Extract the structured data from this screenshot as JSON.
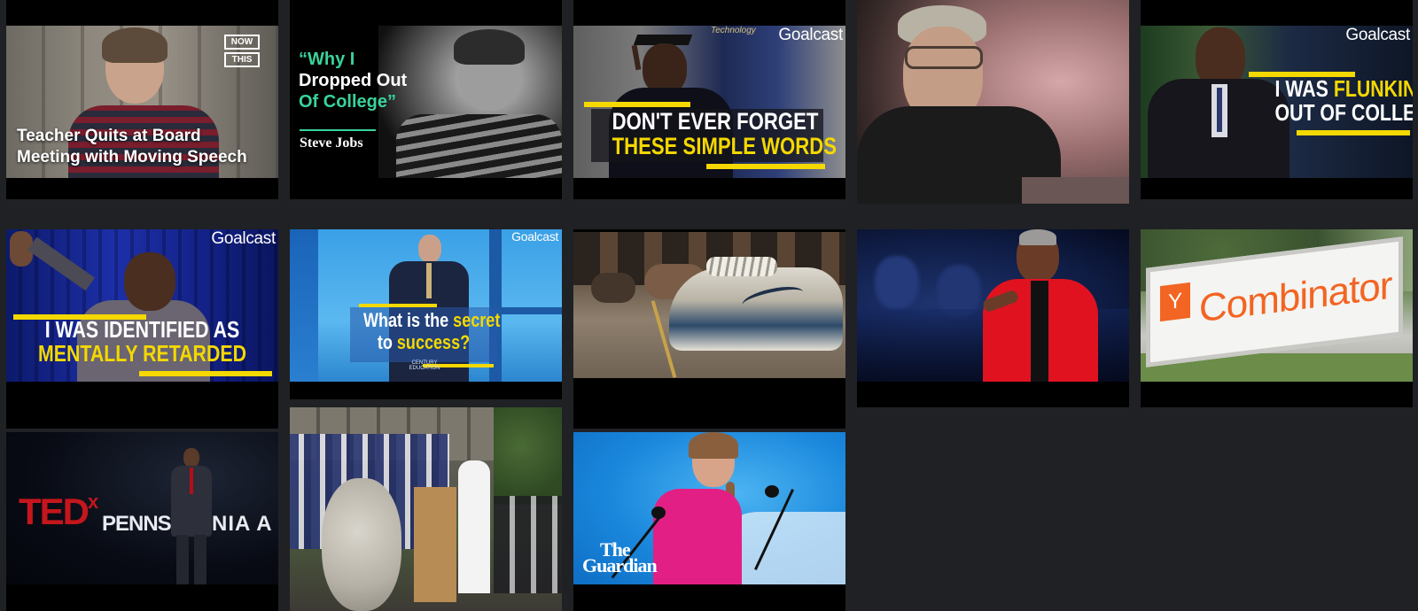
{
  "colors": {
    "background": "#1f2124",
    "card": "#000000",
    "accent_yellow": "#f4d800",
    "accent_green": "#39d39b"
  },
  "videos": [
    {
      "title_line1": "Teacher Quits at Board",
      "title_line2": "Meeting with Moving Speech",
      "brand_line1": "NOW",
      "brand_line2": "THIS"
    },
    {
      "quote_line1": "“Why I",
      "quote_line2": "Dropped Out",
      "quote_line3": "Of College”",
      "author": "Steve Jobs"
    },
    {
      "brand": "Goalcast",
      "banner_text": "Technology",
      "line1": "DON'T EVER FORGET",
      "line2": "THESE SIMPLE WORDS"
    },
    {
      "description": "Older man in flat cap and glasses"
    },
    {
      "brand": "Goalcast",
      "line1_a": "I WAS ",
      "line1_b": "FLUNKING",
      "line2": "OUT OF COLLEGE"
    },
    {
      "brand": "Goalcast",
      "line1": "I WAS IDENTIFIED AS",
      "line2": "MENTALLY RETARDED"
    },
    {
      "brand": "Goalcast",
      "line1_a": "What is the ",
      "line1_b": "secret",
      "line2_a": "to ",
      "line2_b": "success?",
      "podium_text": "CENTURY\nEDUCATION"
    },
    {
      "description": "Sneakers on pavement"
    },
    {
      "description": "Woman in red speaking on stage"
    },
    {
      "sign_letter": "Y",
      "sign_text": "Combinator"
    },
    {
      "tedx_main": "TED",
      "tedx_x": "x",
      "stage_text_1": "PENNSY",
      "stage_text_2": "NIA A"
    },
    {
      "description": "Graduation ceremony"
    },
    {
      "brand_line1": "The",
      "brand_line2": "Guardian"
    }
  ]
}
